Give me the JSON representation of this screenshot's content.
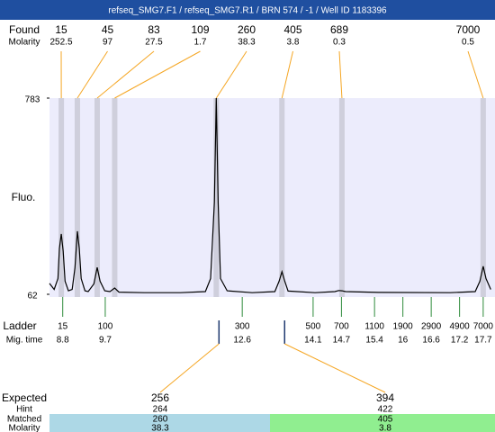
{
  "title": "refseq_SMG7.F1 / refseq_SMG7.R1 / BRN 574 / -1 / Well ID 1183396",
  "found": {
    "label": "Found",
    "molarity_label": "Molarity",
    "peaks": [
      {
        "size": 15,
        "molarity": 252.5,
        "time": 8.77
      },
      {
        "size": 45,
        "molarity": 97,
        "time": 9.11
      },
      {
        "size": 83,
        "molarity": 27.5,
        "time": 9.53
      },
      {
        "size": 109,
        "molarity": 1.7,
        "time": 9.9
      },
      {
        "size": 260,
        "molarity": 38.3,
        "time": 12.05
      },
      {
        "size": 405,
        "molarity": 3.8,
        "time": 13.44
      },
      {
        "size": 689,
        "molarity": 0.3,
        "time": 14.71
      },
      {
        "size": 7000,
        "molarity": 0.5,
        "time": 17.7
      }
    ]
  },
  "chart_data": {
    "type": "line",
    "y_label": "Fluo.",
    "ylim": [
      62,
      783
    ],
    "yticks": [
      62,
      783
    ],
    "xlim": [
      8.52,
      17.95
    ],
    "color": "#000000",
    "x": [
      8.52,
      8.62,
      8.7,
      8.73,
      8.77,
      8.81,
      8.85,
      8.92,
      9.0,
      9.06,
      9.11,
      9.15,
      9.19,
      9.27,
      9.34,
      9.46,
      9.53,
      9.59,
      9.69,
      9.8,
      9.9,
      9.99,
      10.52,
      11.29,
      11.82,
      11.93,
      12.01,
      12.05,
      12.09,
      12.14,
      12.28,
      12.81,
      13.29,
      13.38,
      13.44,
      13.5,
      13.57,
      14.14,
      14.56,
      14.64,
      14.71,
      14.79,
      15.48,
      17.0,
      17.53,
      17.63,
      17.7,
      17.76,
      17.86
    ],
    "values": [
      102,
      80,
      120,
      230,
      284,
      220,
      110,
      75,
      80,
      160,
      294,
      230,
      120,
      75,
      72,
      100,
      161,
      110,
      75,
      72,
      85,
      70,
      68,
      68,
      72,
      120,
      400,
      783,
      400,
      120,
      75,
      68,
      72,
      110,
      145,
      110,
      74,
      68,
      72,
      76,
      75,
      72,
      69,
      68,
      72,
      110,
      165,
      120,
      80
    ]
  },
  "ladder": {
    "label": "Ladder",
    "time_label": "Mig. time",
    "sizes": [
      15,
      100,
      300,
      500,
      700,
      1100,
      1900,
      2900,
      4900,
      7000
    ],
    "times": [
      8.8,
      9.7,
      12.6,
      14.1,
      14.7,
      15.4,
      16,
      16.6,
      17.2,
      17.7
    ]
  },
  "expected": {
    "labels": [
      "Expected",
      "Hint",
      "Matched",
      "Molarity"
    ],
    "columns": [
      {
        "expected": 256,
        "hint": 264,
        "matched": 260,
        "molarity": 38.3
      },
      {
        "expected": 394,
        "hint": 422,
        "matched": 405,
        "molarity": 3.8
      }
    ]
  }
}
